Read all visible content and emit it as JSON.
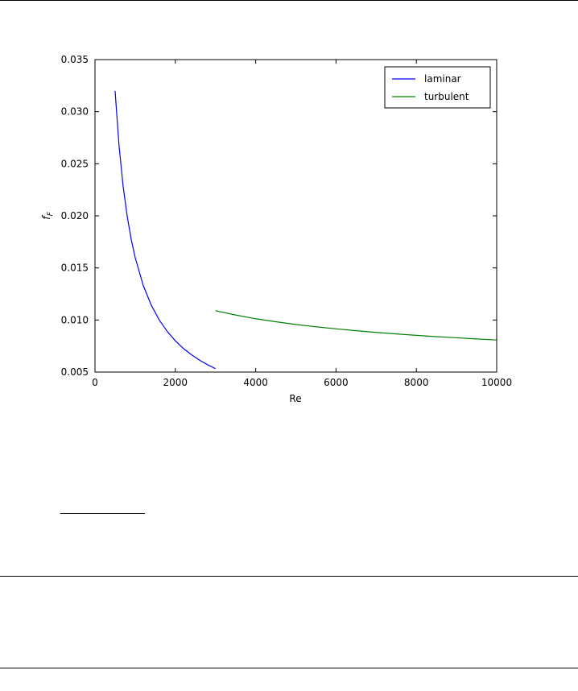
{
  "chart_data": {
    "type": "line",
    "xlabel": "Re",
    "ylabel": "f",
    "ylabel_subscript": "F",
    "xlim": [
      0,
      10000
    ],
    "ylim": [
      0.005,
      0.035
    ],
    "xticks": [
      0,
      2000,
      4000,
      6000,
      8000,
      10000
    ],
    "xtick_labels": [
      "0",
      "2000",
      "4000",
      "6000",
      "8000",
      "10000"
    ],
    "yticks": [
      0.005,
      0.01,
      0.015,
      0.02,
      0.025,
      0.03,
      0.035
    ],
    "ytick_labels": [
      "0.005",
      "0.010",
      "0.015",
      "0.020",
      "0.025",
      "0.030",
      "0.035"
    ],
    "grid": false,
    "legend_position": "top-right",
    "series": [
      {
        "name": "laminar",
        "color": "#0000ff",
        "x": [
          500,
          600,
          700,
          800,
          900,
          1000,
          1200,
          1400,
          1600,
          1800,
          2000,
          2200,
          2400,
          2600,
          2800,
          3000
        ],
        "y": [
          0.032,
          0.02667,
          0.02286,
          0.02,
          0.01778,
          0.016,
          0.01333,
          0.01143,
          0.01,
          0.00889,
          0.008,
          0.00727,
          0.00667,
          0.00615,
          0.00571,
          0.00533
        ]
      },
      {
        "name": "turbulent",
        "color": "#008000",
        "x": [
          3000,
          3500,
          4000,
          4500,
          5000,
          5500,
          6000,
          6500,
          7000,
          7500,
          8000,
          8500,
          9000,
          9500,
          10000
        ],
        "y": [
          0.01089,
          0.01048,
          0.01012,
          0.00983,
          0.00957,
          0.00935,
          0.00915,
          0.00897,
          0.00881,
          0.00866,
          0.00853,
          0.0084,
          0.00829,
          0.00818,
          0.00808
        ]
      }
    ]
  }
}
